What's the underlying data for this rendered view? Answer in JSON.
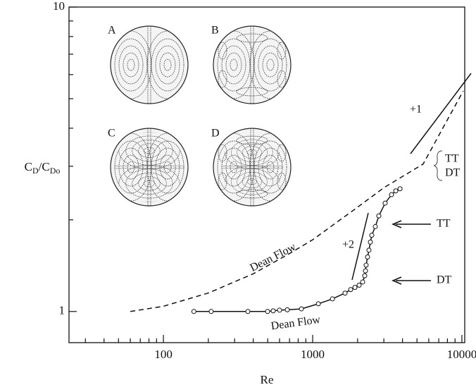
{
  "chart_data": {
    "type": "line",
    "xlabel": "Re",
    "ylabel": [
      "C",
      "D",
      "/C",
      "Do"
    ],
    "xscale": "log",
    "yscale": "log",
    "xlim": [
      23.3,
      10450
    ],
    "ylim": [
      0.79,
      10
    ],
    "xticks": [
      100,
      1000,
      10000
    ],
    "yticks": [
      1,
      10
    ],
    "xminor": [
      30,
      40,
      50,
      60,
      70,
      80,
      90,
      200,
      300,
      400,
      500,
      600,
      700,
      800,
      900,
      2000,
      3000,
      4000,
      5000,
      6000,
      7000,
      8000,
      9000
    ],
    "yminor": [
      2,
      3,
      4,
      5,
      6,
      7,
      8,
      9
    ],
    "series": [
      {
        "style": "markers",
        "color": "#111",
        "x": [
          160,
          209,
          368,
          499,
          544,
          600,
          676,
          841,
          1092,
          1357,
          1648,
          1798,
          1920,
          2049,
          2163,
          2233,
          2259,
          2282,
          2334,
          2384,
          2437,
          2490,
          2630,
          2775,
          3060,
          3377,
          3606,
          3850
        ],
        "values": [
          1.0,
          1.0,
          1.0,
          1.0,
          1.005,
          1.01,
          1.013,
          1.02,
          1.06,
          1.1,
          1.149,
          1.18,
          1.2,
          1.22,
          1.25,
          1.31,
          1.36,
          1.42,
          1.51,
          1.59,
          1.69,
          1.78,
          1.9,
          2.06,
          2.27,
          2.42,
          2.49,
          2.53
        ]
      },
      {
        "style": "dashed",
        "color": "#111",
        "x": [
          60,
          100,
          200,
          400,
          700,
          1000,
          2000,
          3000,
          5500,
          10200
        ],
        "values": [
          1.0,
          1.04,
          1.15,
          1.33,
          1.55,
          1.72,
          2.2,
          2.55,
          3.05,
          5.3
        ]
      }
    ],
    "annotations": [
      "A",
      "B",
      "C",
      "D",
      "+1",
      "+2",
      "TT",
      "DT",
      "TT",
      "DT",
      "Dean Flow",
      "Dean Flow"
    ]
  }
}
